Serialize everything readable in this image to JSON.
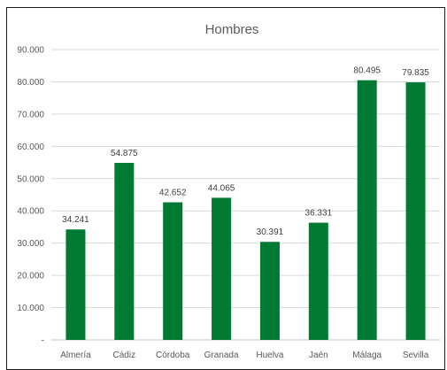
{
  "chart_data": {
    "type": "bar",
    "title": "Hombres",
    "xlabel": "",
    "ylabel": "",
    "categories": [
      "Almería",
      "Cádiz",
      "Córdoba",
      "Granada",
      "Huelva",
      "Jaén",
      "Málaga",
      "Sevilla"
    ],
    "values": [
      34241,
      54875,
      42652,
      44065,
      30391,
      36331,
      80495,
      79835
    ],
    "value_labels": [
      "34.241",
      "54.875",
      "42.652",
      "44.065",
      "30.391",
      "36.331",
      "80.495",
      "79.835"
    ],
    "ylim": [
      0,
      90000
    ],
    "yticks": [
      0,
      10000,
      20000,
      30000,
      40000,
      50000,
      60000,
      70000,
      80000,
      90000
    ],
    "ytick_labels": [
      "-",
      "10.000",
      "20.000",
      "30.000",
      "40.000",
      "50.000",
      "60.000",
      "70.000",
      "80.000",
      "90.000"
    ],
    "grid": true,
    "legend": "none",
    "bar_color": "#007a33"
  }
}
